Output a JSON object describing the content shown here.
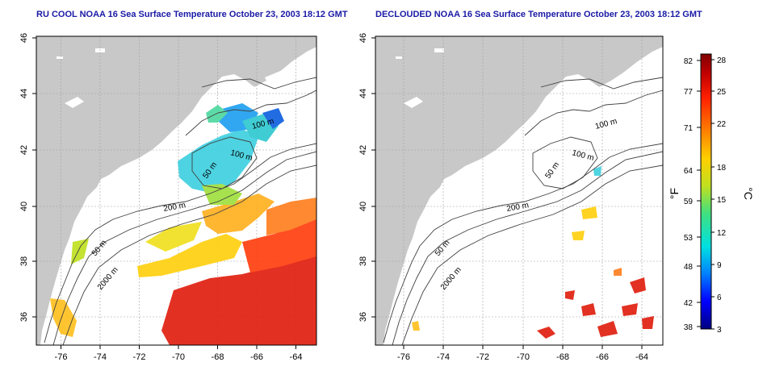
{
  "panels": [
    {
      "title": "RU COOL NOAA 16 Sea Surface Temperature October 23, 2003 18:12 GMT"
    },
    {
      "title": "DECLOUDED NOAA 16 Sea Surface Temperature October 23, 2003 18:12 GMT"
    }
  ],
  "axes": {
    "lon_ticks": [
      "-76",
      "-74",
      "-72",
      "-70",
      "-68",
      "-66",
      "-64"
    ],
    "lat_ticks": [
      "36",
      "38",
      "40",
      "42",
      "44",
      "46"
    ],
    "lon_range": [
      -77.2,
      -63.2
    ],
    "lat_range": [
      35.0,
      46.0
    ]
  },
  "contour_labels": {
    "left": [
      "100 m",
      "100 m",
      "50 m",
      "200 m",
      "50 m",
      "2000 m"
    ],
    "right": [
      "100 m",
      "100 m",
      "50 m",
      "200 m",
      "50 m",
      "2000 m"
    ]
  },
  "colorbar": {
    "fahrenheit_ticks": [
      "82",
      "77",
      "71",
      "64",
      "59",
      "53",
      "48",
      "42",
      "38"
    ],
    "celsius_ticks": [
      "28",
      "25",
      "22",
      "18",
      "15",
      "12",
      "9",
      "6",
      "3"
    ],
    "fahrenheit_label": "°F",
    "celsius_label": "°C",
    "colors": [
      "#000080",
      "#0000ff",
      "#0080ff",
      "#00e0e0",
      "#40e080",
      "#c0e020",
      "#ffd000",
      "#ff8000",
      "#ff2000",
      "#c00000",
      "#800000"
    ]
  },
  "colors": {
    "title": "#1a1aa6",
    "land": "#c8c8c8",
    "ocean": "#ffffff",
    "grid": "#a0a0a0"
  }
}
